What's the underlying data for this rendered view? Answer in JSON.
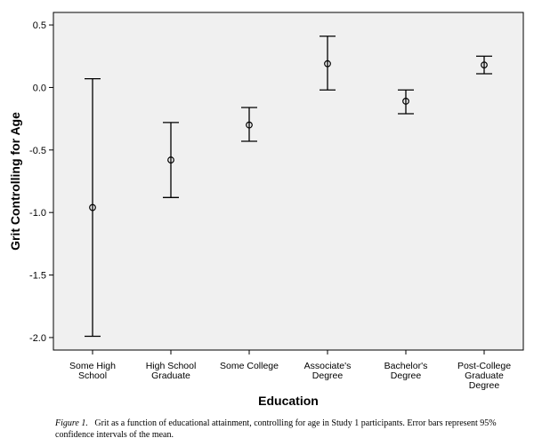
{
  "chart_data": {
    "type": "scatter",
    "subtype": "means with 95% CI error bars",
    "xlabel": "Education",
    "ylabel": "Grit Controlling for Age",
    "categories": [
      [
        "Some High",
        "School"
      ],
      [
        "High School",
        "Graduate"
      ],
      [
        "Some College"
      ],
      [
        "Associate's",
        "Degree"
      ],
      [
        "Bachelor's",
        "Degree"
      ],
      [
        "Post-College",
        "Graduate",
        "Degree"
      ]
    ],
    "means": [
      -0.96,
      -0.58,
      -0.3,
      0.19,
      -0.11,
      0.18
    ],
    "ci_lower": [
      -1.99,
      -0.88,
      -0.43,
      -0.02,
      -0.21,
      0.11
    ],
    "ci_upper": [
      0.07,
      -0.28,
      -0.16,
      0.41,
      -0.02,
      0.25
    ],
    "ylim": [
      -2.1,
      0.6
    ],
    "yticks": [
      0.5,
      0.0,
      -0.5,
      -1.0,
      -1.5,
      -2.0
    ],
    "ytick_labels": [
      "0.5",
      "0.0",
      "-0.5",
      "-1.0",
      "-1.5",
      "-2.0"
    ],
    "grid": false,
    "colors": {
      "plot_background": "#f0f0f0",
      "marks": "#000000"
    }
  },
  "caption": {
    "label": "Figure 1.",
    "text": "Grit as a function of educational attainment, controlling for age in Study 1 participants. Error bars represent 95% confidence intervals of the mean."
  }
}
